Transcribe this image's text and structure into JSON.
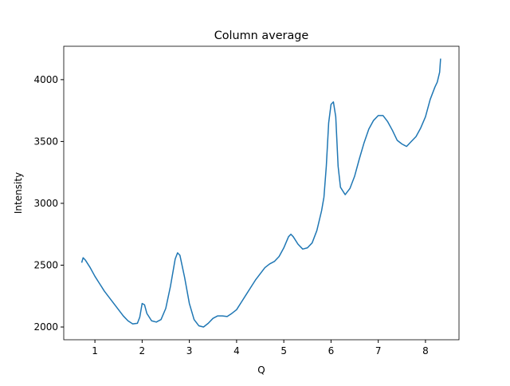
{
  "chart_data": {
    "type": "line",
    "title": "Column average",
    "xlabel": "Q",
    "ylabel": "Intensity",
    "x": [
      0.72,
      0.75,
      0.8,
      0.9,
      1.0,
      1.1,
      1.2,
      1.3,
      1.4,
      1.5,
      1.6,
      1.7,
      1.8,
      1.9,
      1.95,
      2.0,
      2.05,
      2.1,
      2.2,
      2.3,
      2.4,
      2.5,
      2.6,
      2.7,
      2.75,
      2.8,
      2.9,
      3.0,
      3.1,
      3.2,
      3.3,
      3.4,
      3.5,
      3.6,
      3.7,
      3.8,
      3.9,
      4.0,
      4.1,
      4.2,
      4.3,
      4.4,
      4.5,
      4.6,
      4.7,
      4.8,
      4.9,
      5.0,
      5.1,
      5.15,
      5.2,
      5.3,
      5.4,
      5.5,
      5.6,
      5.7,
      5.8,
      5.85,
      5.9,
      5.95,
      6.0,
      6.05,
      6.1,
      6.15,
      6.2,
      6.3,
      6.4,
      6.5,
      6.6,
      6.7,
      6.8,
      6.9,
      7.0,
      7.1,
      7.2,
      7.3,
      7.4,
      7.5,
      7.6,
      7.7,
      7.8,
      7.9,
      8.0,
      8.1,
      8.2,
      8.25,
      8.3,
      8.32
    ],
    "series": [
      {
        "color": "#1f77b4",
        "values": [
          2520,
          2560,
          2540,
          2480,
          2410,
          2350,
          2290,
          2240,
          2190,
          2140,
          2090,
          2050,
          2025,
          2030,
          2080,
          2190,
          2180,
          2110,
          2050,
          2040,
          2060,
          2150,
          2330,
          2550,
          2600,
          2580,
          2400,
          2190,
          2060,
          2010,
          2000,
          2030,
          2070,
          2090,
          2090,
          2085,
          2110,
          2140,
          2200,
          2260,
          2320,
          2380,
          2430,
          2480,
          2510,
          2530,
          2570,
          2640,
          2730,
          2750,
          2730,
          2670,
          2630,
          2640,
          2680,
          2780,
          2940,
          3050,
          3300,
          3650,
          3800,
          3820,
          3700,
          3300,
          3130,
          3070,
          3120,
          3220,
          3360,
          3490,
          3600,
          3670,
          3710,
          3710,
          3660,
          3590,
          3510,
          3480,
          3460,
          3500,
          3540,
          3610,
          3700,
          3840,
          3940,
          3980,
          4060,
          4170
        ]
      }
    ],
    "xlim": [
      0.34,
      8.71
    ],
    "ylim": [
      1897,
      4270
    ],
    "xticks": [
      1,
      2,
      3,
      4,
      5,
      6,
      7,
      8
    ],
    "yticks": [
      2000,
      2500,
      3000,
      3500,
      4000
    ]
  }
}
